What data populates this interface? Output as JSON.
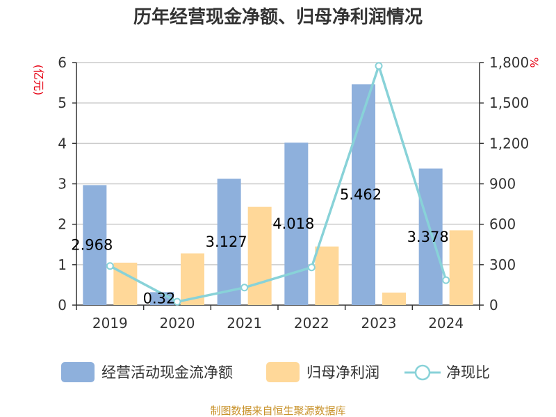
{
  "chart_data": {
    "type": "bar",
    "title": "历年经营现金净额、归母净利润情况",
    "categories": [
      "2019",
      "2020",
      "2021",
      "2022",
      "2023",
      "2024"
    ],
    "series": [
      {
        "name": "经营活动现金流净额",
        "type": "bar",
        "axis": "left",
        "values": [
          2.968,
          0.32,
          3.127,
          4.018,
          5.462,
          3.378
        ],
        "color": "#8eb0dc"
      },
      {
        "name": "归母净利润",
        "type": "bar",
        "axis": "left",
        "values": [
          1.05,
          1.28,
          2.43,
          1.45,
          0.31,
          1.85
        ],
        "color": "#ffd899"
      },
      {
        "name": "净现比",
        "type": "line",
        "axis": "right",
        "values": [
          290,
          25,
          130,
          280,
          1775,
          185
        ],
        "color": "#88d2d8"
      }
    ],
    "data_labels": [
      "2.968",
      "0.32",
      "3.127",
      "4.018",
      "5.462",
      "3.378"
    ],
    "left_axis": {
      "unit": "(亿元)",
      "ylim": [
        0,
        6
      ],
      "ticks": [
        "0",
        "1",
        "2",
        "3",
        "4",
        "5",
        "6"
      ]
    },
    "right_axis": {
      "unit": "%",
      "ylim": [
        0,
        1800
      ],
      "ticks": [
        "0",
        "300",
        "600",
        "900",
        "1,200",
        "1,500",
        "1,800"
      ]
    },
    "grid": true,
    "legend_position": "bottom"
  },
  "source_text": "制图数据来自恒生聚源数据库"
}
